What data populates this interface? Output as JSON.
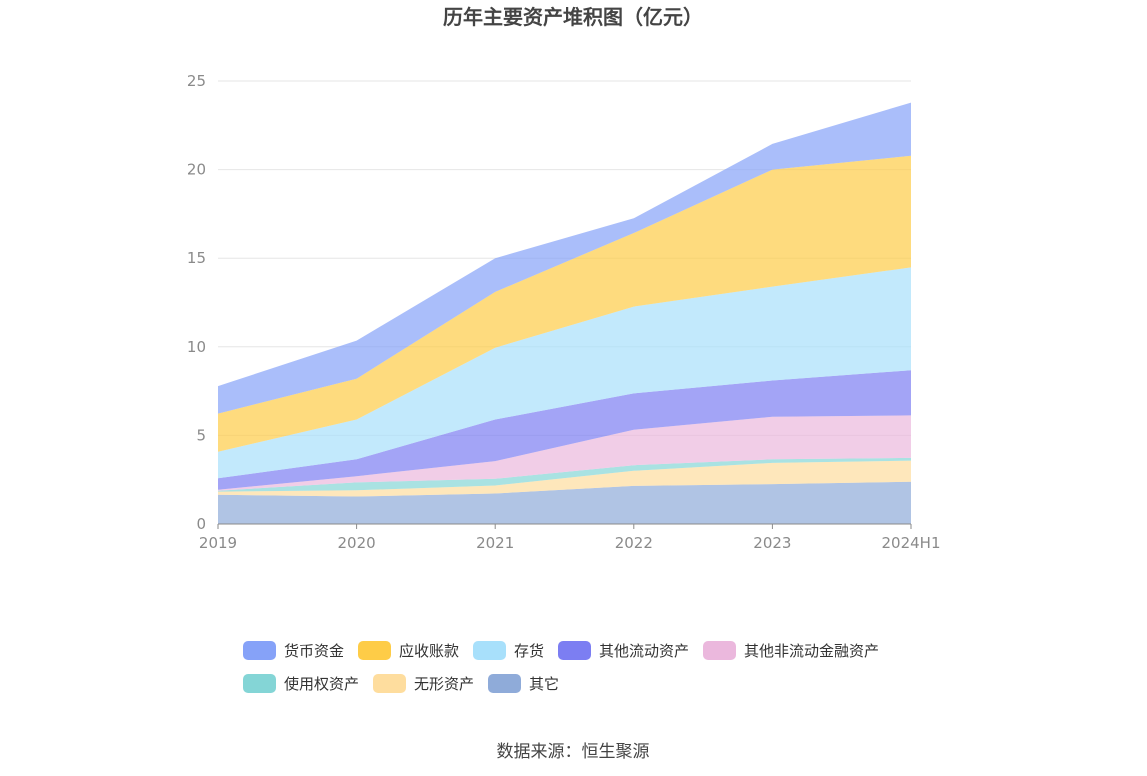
{
  "chart_data": {
    "type": "area",
    "stacked": true,
    "title": "历年主要资产堆积图（亿元）",
    "categories": [
      "2019",
      "2020",
      "2021",
      "2022",
      "2023",
      "2024H1"
    ],
    "ylim": [
      0,
      25
    ],
    "yticks": [
      "0",
      "5",
      "10",
      "15",
      "20",
      "25"
    ],
    "grid": true,
    "legend_position": "bottom",
    "series": [
      {
        "name": "其它",
        "color": "#8fabd9",
        "values": [
          1.65,
          1.55,
          1.72,
          2.15,
          2.25,
          2.38
        ]
      },
      {
        "name": "无形资产",
        "color": "#fedd9e",
        "values": [
          0.18,
          0.35,
          0.45,
          0.85,
          1.2,
          1.2
        ]
      },
      {
        "name": "使用权资产",
        "color": "#84d5d6",
        "values": [
          0.05,
          0.45,
          0.38,
          0.32,
          0.2,
          0.15
        ]
      },
      {
        "name": "其他非流动金融资产",
        "color": "#ebb8dd",
        "values": [
          0.05,
          0.35,
          1.0,
          2.0,
          2.4,
          2.4
        ]
      },
      {
        "name": "其他流动资产",
        "color": "#7c7ef2",
        "values": [
          0.65,
          0.95,
          2.35,
          2.05,
          2.05,
          2.55
        ]
      },
      {
        "name": "存货",
        "color": "#a8e0fb",
        "values": [
          1.5,
          2.25,
          4.05,
          4.9,
          5.3,
          5.8
        ]
      },
      {
        "name": "应收账款",
        "color": "#fecc47",
        "values": [
          2.15,
          2.3,
          3.15,
          4.15,
          6.6,
          6.3
        ]
      },
      {
        "name": "货币资金",
        "color": "#86a2f8",
        "values": [
          1.55,
          2.15,
          1.9,
          0.83,
          1.45,
          3.0
        ]
      }
    ],
    "legend_order": [
      "货币资金",
      "应收账款",
      "存货",
      "其他流动资产",
      "其他非流动金融资产",
      "使用权资产",
      "无形资产",
      "其它"
    ]
  },
  "source_text": "数据来源：恒生聚源"
}
